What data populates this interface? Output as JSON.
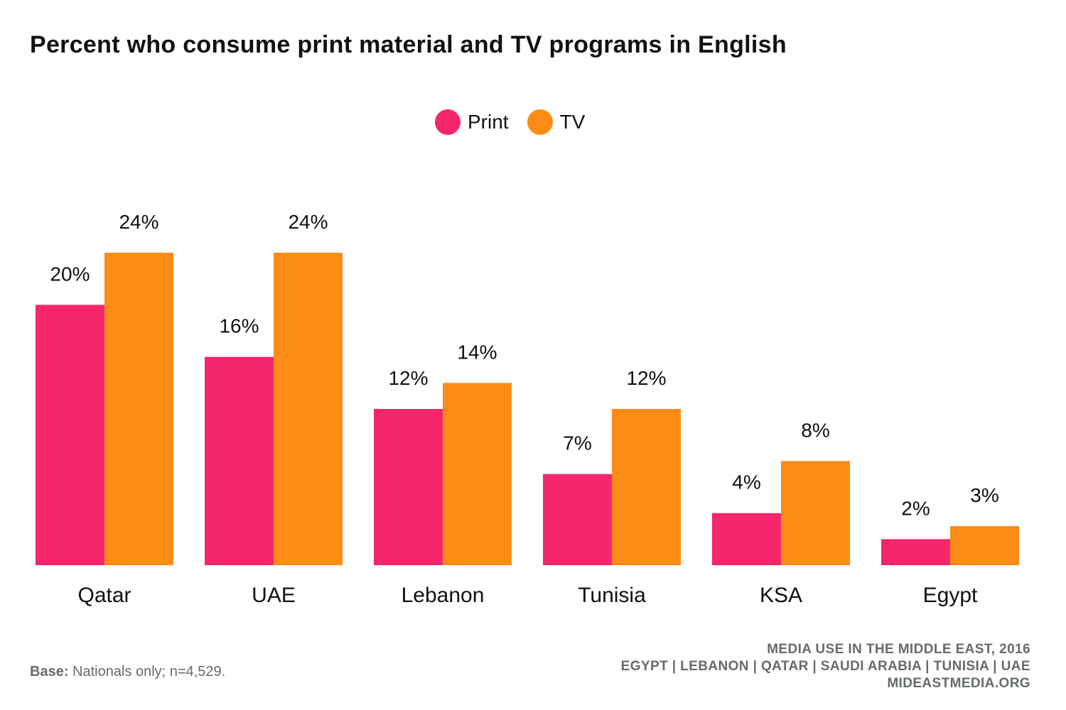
{
  "title": "Percent who consume print material and TV programs in English",
  "colors": {
    "print": "#f5266b",
    "tv": "#fd8c16"
  },
  "chart_data": {
    "type": "bar",
    "title": "Percent who consume print material and TV programs in English",
    "categories": [
      "Qatar",
      "UAE",
      "Lebanon",
      "Tunisia",
      "KSA",
      "Egypt"
    ],
    "series": [
      {
        "name": "Print",
        "values": [
          20,
          16,
          12,
          7,
          4,
          2
        ],
        "labels": [
          "20%",
          "16%",
          "12%",
          "7%",
          "4%",
          "2%"
        ]
      },
      {
        "name": "TV",
        "values": [
          24,
          24,
          14,
          12,
          8,
          3
        ],
        "labels": [
          "24%",
          "24%",
          "14%",
          "12%",
          "8%",
          "3%"
        ]
      }
    ],
    "ylim": [
      0,
      24
    ],
    "grid": false,
    "legend_position": "top-center"
  },
  "footer": {
    "base_label": "Base:",
    "base_text": "Nationals only;  n=4,529.",
    "source_line1": "MEDIA USE IN THE MIDDLE EAST, 2016",
    "source_line2": "EGYPT | LEBANON | QATAR | SAUDI ARABIA | TUNISIA | UAE",
    "source_line3": "MIDEASTMEDIA.ORG"
  }
}
